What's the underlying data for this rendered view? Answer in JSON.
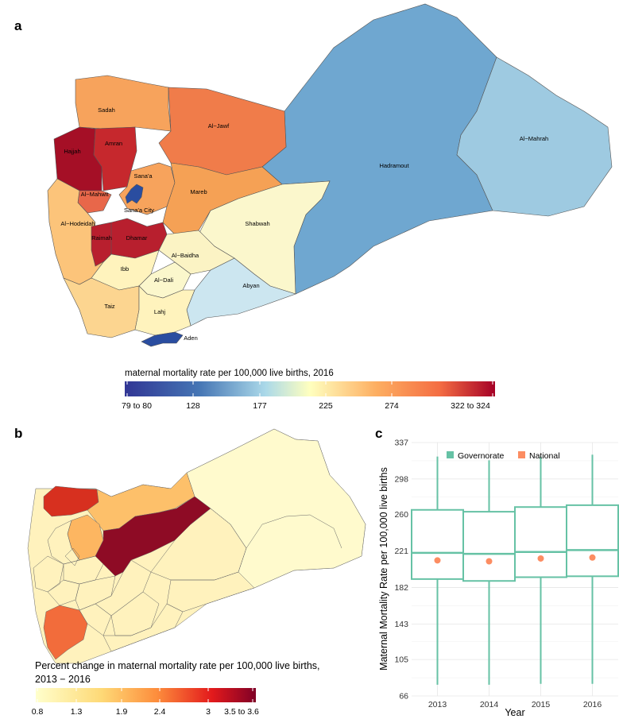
{
  "panels": {
    "a": {
      "label": "a",
      "legend_title": "maternal mortality rate per 100,000 live births, 2016",
      "legend_ticks": [
        "79 to 80",
        "128",
        "177",
        "225",
        "274",
        "322 to 324"
      ],
      "regions": {
        "sadah": "Sadah",
        "aljawf": "Al−Jawf",
        "hajjah": "Hajjah",
        "amran": "Amran",
        "sanaa": "Sana'a",
        "almahwit": "Al−Mahwit",
        "sanaacity": "Sana'a City",
        "mareb": "Mareb",
        "hadramout": "Hadramout",
        "almahrah": "Al−Mahrah",
        "alhodeidah": "Al−Hodeidah",
        "raimah": "Raimah",
        "dhamar": "Dhamar",
        "shabwah": "Shabwah",
        "albaidha": "Al−Baidha",
        "ibb": "Ibb",
        "aldali": "Al−Dali",
        "abyan": "Abyan",
        "taiz": "Taiz",
        "lahj": "Lahj",
        "aden": "Aden"
      },
      "colors": {
        "hadramout": "#6fa7d0",
        "almahrah": "#9ecae1",
        "sadah": "#f7a35c",
        "aljawf": "#f07c4a",
        "hajjah": "#a50f26",
        "amran": "#c6282d",
        "sanaa": "#f7a35c",
        "almahwit": "#e8674a",
        "sanaacity": "#2a4da0",
        "mareb": "#f5a155",
        "alhodeidah": "#fcc47a",
        "raimah": "#b81f2e",
        "dhamar": "#b81f2e",
        "shabwah": "#fbf7cc",
        "albaidha": "#fbf3c4",
        "ibb": "#fff3bd",
        "aldali": "#fbf7cc",
        "abyan": "#cce6f0",
        "taiz": "#fcd590",
        "lahj": "#fff3bd",
        "aden": "#2a4da0"
      }
    },
    "b": {
      "label": "b",
      "legend_title": "Percent change in maternal mortality rate per 100,000 live births,",
      "legend_subtitle": "2013 − 2016",
      "legend_ticks": [
        "0.8",
        "1.3",
        "1.9",
        "2.4",
        "3",
        "3.5 to 3.6"
      ],
      "colors": {
        "base": "#fff2bd",
        "sadah": "#d7301f",
        "aljawf": "#fdc06a",
        "sanaa": "#fdb661",
        "mareb": "#8e0b25",
        "taiz": "#f26c3b",
        "hodeidah": "#fff0b8",
        "hadramout": "#fffacd"
      }
    },
    "c": {
      "label": "c",
      "chart_data": {
        "type": "box",
        "categories": [
          "2013",
          "2014",
          "2015",
          "2016"
        ],
        "ylabel": "Maternal Mortality Rate per 100,000 live births",
        "xlabel": "Year",
        "yticks": [
          66,
          105,
          143,
          182,
          221,
          260,
          298,
          337
        ],
        "ylim": [
          66,
          337
        ],
        "legend": [
          {
            "name": "Governorate",
            "color": "#66c2a5"
          },
          {
            "name": "National",
            "color": "#fc8d62"
          }
        ],
        "boxes": [
          {
            "year": "2013",
            "min": 78,
            "q1": 191,
            "median": 219,
            "q3": 265,
            "max": 322
          },
          {
            "year": "2014",
            "min": 78,
            "q1": 189,
            "median": 218,
            "q3": 263,
            "max": 318
          },
          {
            "year": "2015",
            "min": 79,
            "q1": 193,
            "median": 220,
            "q3": 268,
            "max": 322
          },
          {
            "year": "2016",
            "min": 79,
            "q1": 194,
            "median": 222,
            "q3": 270,
            "max": 324
          }
        ],
        "national": [
          211,
          210,
          213,
          214
        ]
      }
    }
  }
}
